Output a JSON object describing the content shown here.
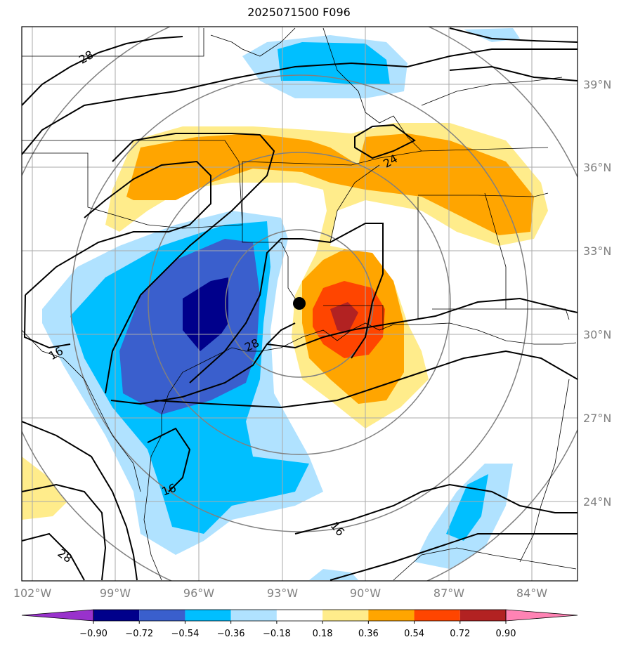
{
  "title": "2025071500 F096",
  "lat_labels": [
    {
      "text": "39°N",
      "lat": 39
    },
    {
      "text": "36°N",
      "lat": 36
    },
    {
      "text": "33°N",
      "lat": 33
    },
    {
      "text": "30°N",
      "lat": 30
    },
    {
      "text": "27°N",
      "lat": 27
    },
    {
      "text": "24°N",
      "lat": 24
    }
  ],
  "lon_labels": [
    {
      "text": "102°W",
      "lon": -102
    },
    {
      "text": "99°W",
      "lon": -99
    },
    {
      "text": "96°W",
      "lon": -96
    },
    {
      "text": "93°W",
      "lon": -93
    },
    {
      "text": "90°W",
      "lon": -90
    },
    {
      "text": "87°W",
      "lon": -87
    },
    {
      "text": "84°W",
      "lon": -84
    }
  ],
  "contour_labels": [
    "28",
    "24",
    "28",
    "16",
    "16",
    "16",
    "28"
  ],
  "center_marker": {
    "lat": 31.1,
    "lon": -92.5,
    "color": "#000000"
  },
  "colorbar": {
    "ticks": [
      "−0.90",
      "−0.72",
      "−0.54",
      "−0.36",
      "−0.18",
      "0.18",
      "0.36",
      "0.54",
      "0.72",
      "0.90"
    ],
    "colors": [
      "#9932cc",
      "#00008b",
      "#3a5fcd",
      "#00bfff",
      "#b0e2ff",
      "#ffffff",
      "#ffec8b",
      "#ffa500",
      "#ff4500",
      "#b22222",
      "#ff83b4"
    ]
  }
}
